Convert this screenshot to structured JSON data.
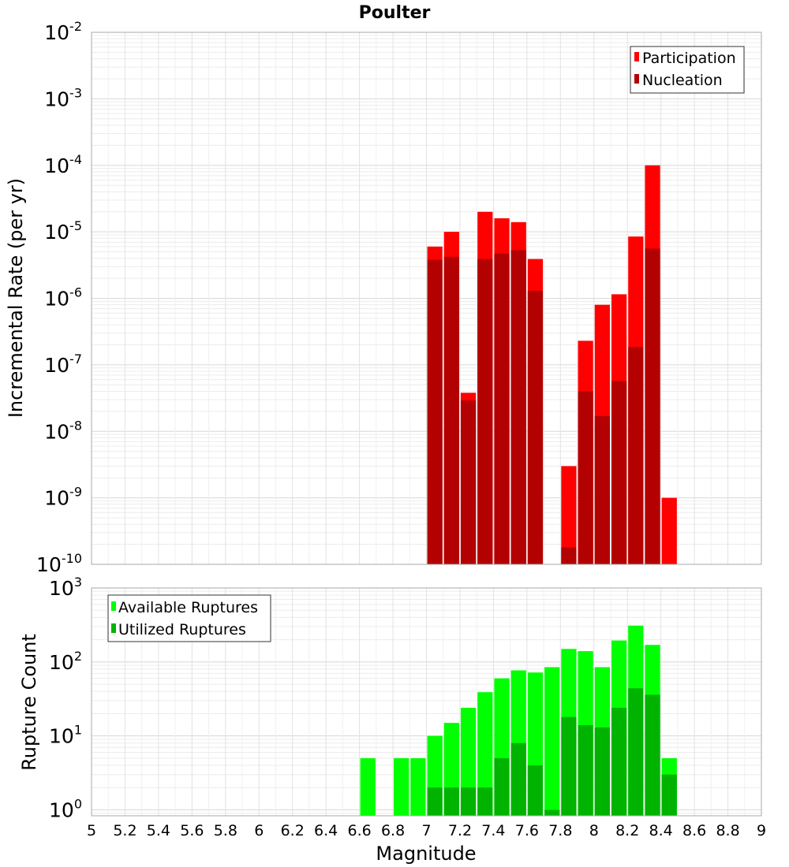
{
  "chart_data": [
    {
      "type": "bar",
      "id": "top",
      "title": "Poulter",
      "xlabel": "",
      "ylabel": "Incremental Rate (per yr)",
      "yscale": "log",
      "ylim_exp": [
        -10,
        -2
      ],
      "xlim": [
        5,
        9
      ],
      "legend_position": "top-right",
      "series": [
        {
          "name": "Participation",
          "color": "#ff0000",
          "x": [
            7.05,
            7.15,
            7.25,
            7.35,
            7.45,
            7.55,
            7.65,
            7.85,
            7.95,
            8.05,
            8.15,
            8.25,
            8.35,
            8.45
          ],
          "values": [
            6e-06,
            1e-05,
            3.8e-08,
            2e-05,
            1.6e-05,
            1.4e-05,
            3.9e-06,
            3e-09,
            2.3e-07,
            8e-07,
            1.15e-06,
            8.5e-06,
            0.0001,
            1e-09
          ]
        },
        {
          "name": "Nucleation",
          "color": "#b30000",
          "x": [
            7.05,
            7.15,
            7.25,
            7.35,
            7.45,
            7.55,
            7.65,
            7.85,
            7.95,
            8.05,
            8.15,
            8.25,
            8.35
          ],
          "values": [
            3.8e-06,
            4.2e-06,
            2.9e-08,
            3.9e-06,
            4.7e-06,
            5.3e-06,
            1.3e-06,
            1.8e-10,
            4e-08,
            1.7e-08,
            5.7e-08,
            1.85e-07,
            5.6e-06
          ]
        }
      ]
    },
    {
      "type": "bar",
      "id": "bottom",
      "title": "",
      "xlabel": "Magnitude",
      "ylabel": "Rupture Count",
      "yscale": "log",
      "ylim_exp": [
        -0.08,
        3
      ],
      "xlim": [
        5,
        9
      ],
      "legend_position": "top-left",
      "series": [
        {
          "name": "Available Ruptures",
          "color": "#00ff00",
          "x": [
            6.65,
            6.85,
            6.95,
            7.05,
            7.15,
            7.25,
            7.35,
            7.45,
            7.55,
            7.65,
            7.75,
            7.85,
            7.95,
            8.05,
            8.15,
            8.25,
            8.35,
            8.45
          ],
          "values": [
            5,
            5,
            5,
            10,
            15,
            24,
            39,
            60,
            77,
            72,
            85,
            150,
            140,
            85,
            195,
            310,
            170,
            5
          ]
        },
        {
          "name": "Utilized Ruptures",
          "color": "#00b300",
          "x": [
            7.05,
            7.15,
            7.25,
            7.35,
            7.45,
            7.55,
            7.65,
            7.75,
            7.85,
            7.95,
            8.05,
            8.15,
            8.25,
            8.35,
            8.45
          ],
          "values": [
            2,
            2,
            2,
            2,
            5,
            8,
            4,
            1,
            18,
            14,
            13,
            24,
            44,
            36,
            3
          ]
        }
      ]
    }
  ],
  "x_ticks": [
    "5",
    "5.2",
    "5.4",
    "5.6",
    "5.8",
    "6",
    "6.2",
    "6.4",
    "6.6",
    "6.8",
    "7",
    "7.2",
    "7.4",
    "7.6",
    "7.8",
    "8",
    "8.2",
    "8.4",
    "8.6",
    "8.8",
    "9"
  ],
  "top_y_ticks": [
    {
      "base": "10",
      "exp": "-2"
    },
    {
      "base": "10",
      "exp": "-3"
    },
    {
      "base": "10",
      "exp": "-4"
    },
    {
      "base": "10",
      "exp": "-5"
    },
    {
      "base": "10",
      "exp": "-6"
    },
    {
      "base": "10",
      "exp": "-7"
    },
    {
      "base": "10",
      "exp": "-8"
    },
    {
      "base": "10",
      "exp": "-9"
    },
    {
      "base": "10",
      "exp": "-10"
    }
  ],
  "bottom_y_ticks": [
    {
      "base": "10",
      "exp": "3"
    },
    {
      "base": "10",
      "exp": "2"
    },
    {
      "base": "10",
      "exp": "1"
    },
    {
      "base": "10",
      "exp": "0"
    }
  ]
}
